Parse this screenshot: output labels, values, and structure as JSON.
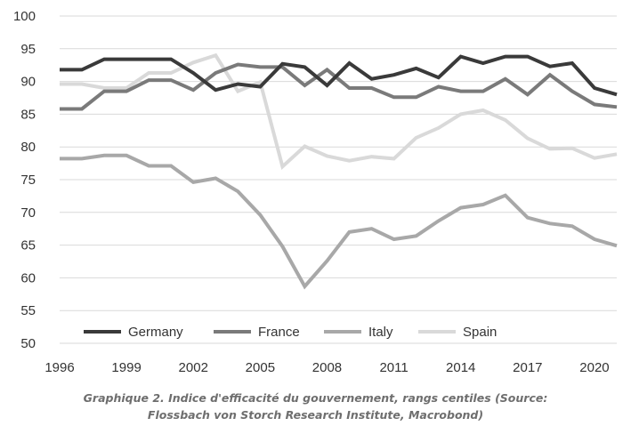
{
  "chart_data": {
    "type": "line",
    "title": "",
    "xlabel": "",
    "ylabel": "",
    "ylim": [
      50,
      100
    ],
    "xlim": [
      1996,
      2021
    ],
    "yticks": [
      "100",
      "95",
      "90",
      "85",
      "80",
      "75",
      "70",
      "65",
      "60",
      "55",
      "50"
    ],
    "xticks": [
      "1996",
      "1999",
      "2002",
      "2005",
      "2008",
      "2011",
      "2014",
      "2017",
      "2020"
    ],
    "grid": "horizontal",
    "legend_position": "bottom-left",
    "x": [
      1996,
      1997,
      1998,
      1999,
      2000,
      2001,
      2002,
      2003,
      2004,
      2005,
      2006,
      2007,
      2008,
      2009,
      2010,
      2011,
      2012,
      2013,
      2014,
      2015,
      2016,
      2017,
      2018,
      2019,
      2020,
      2021
    ],
    "series": [
      {
        "name": "Germany",
        "color": "#3a3a3a",
        "values": [
          91.8,
          91.8,
          93.4,
          93.4,
          93.4,
          93.4,
          91.3,
          88.7,
          89.6,
          89.2,
          92.7,
          92.2,
          89.4,
          92.8,
          90.4,
          91.0,
          92.0,
          90.6,
          93.8,
          92.8,
          93.8,
          93.8,
          92.3,
          92.8,
          89.0,
          88.0
        ]
      },
      {
        "name": "France",
        "color": "#7a7a7a",
        "values": [
          85.8,
          85.8,
          88.5,
          88.5,
          90.2,
          90.2,
          88.7,
          91.3,
          92.6,
          92.2,
          92.2,
          89.4,
          91.8,
          89.0,
          89.0,
          87.6,
          87.6,
          89.2,
          88.5,
          88.5,
          90.4,
          88.0,
          91.0,
          88.5,
          86.5,
          86.1
        ]
      },
      {
        "name": "Italy",
        "color": "#a8a8a8",
        "values": [
          78.2,
          78.2,
          78.7,
          78.7,
          77.1,
          77.1,
          74.6,
          75.2,
          73.2,
          69.6,
          64.8,
          58.7,
          62.6,
          67.0,
          67.5,
          65.9,
          66.4,
          68.7,
          70.7,
          71.2,
          72.6,
          69.2,
          68.3,
          67.9,
          65.9,
          64.9
        ]
      },
      {
        "name": "Spain",
        "color": "#d9d9d9",
        "values": [
          89.6,
          89.6,
          89.0,
          89.0,
          91.3,
          91.3,
          92.9,
          94.0,
          88.5,
          89.9,
          77.0,
          80.1,
          78.6,
          77.9,
          78.5,
          78.2,
          81.4,
          82.9,
          85.0,
          85.6,
          84.1,
          81.3,
          79.7,
          79.8,
          78.3,
          78.9
        ]
      }
    ]
  },
  "caption": {
    "line1": "Graphique 2. Indice d'efficacité du gouvernement, rangs centiles (Source:",
    "line2": "Flossbach von Storch Research Institute, Macrobond)"
  }
}
